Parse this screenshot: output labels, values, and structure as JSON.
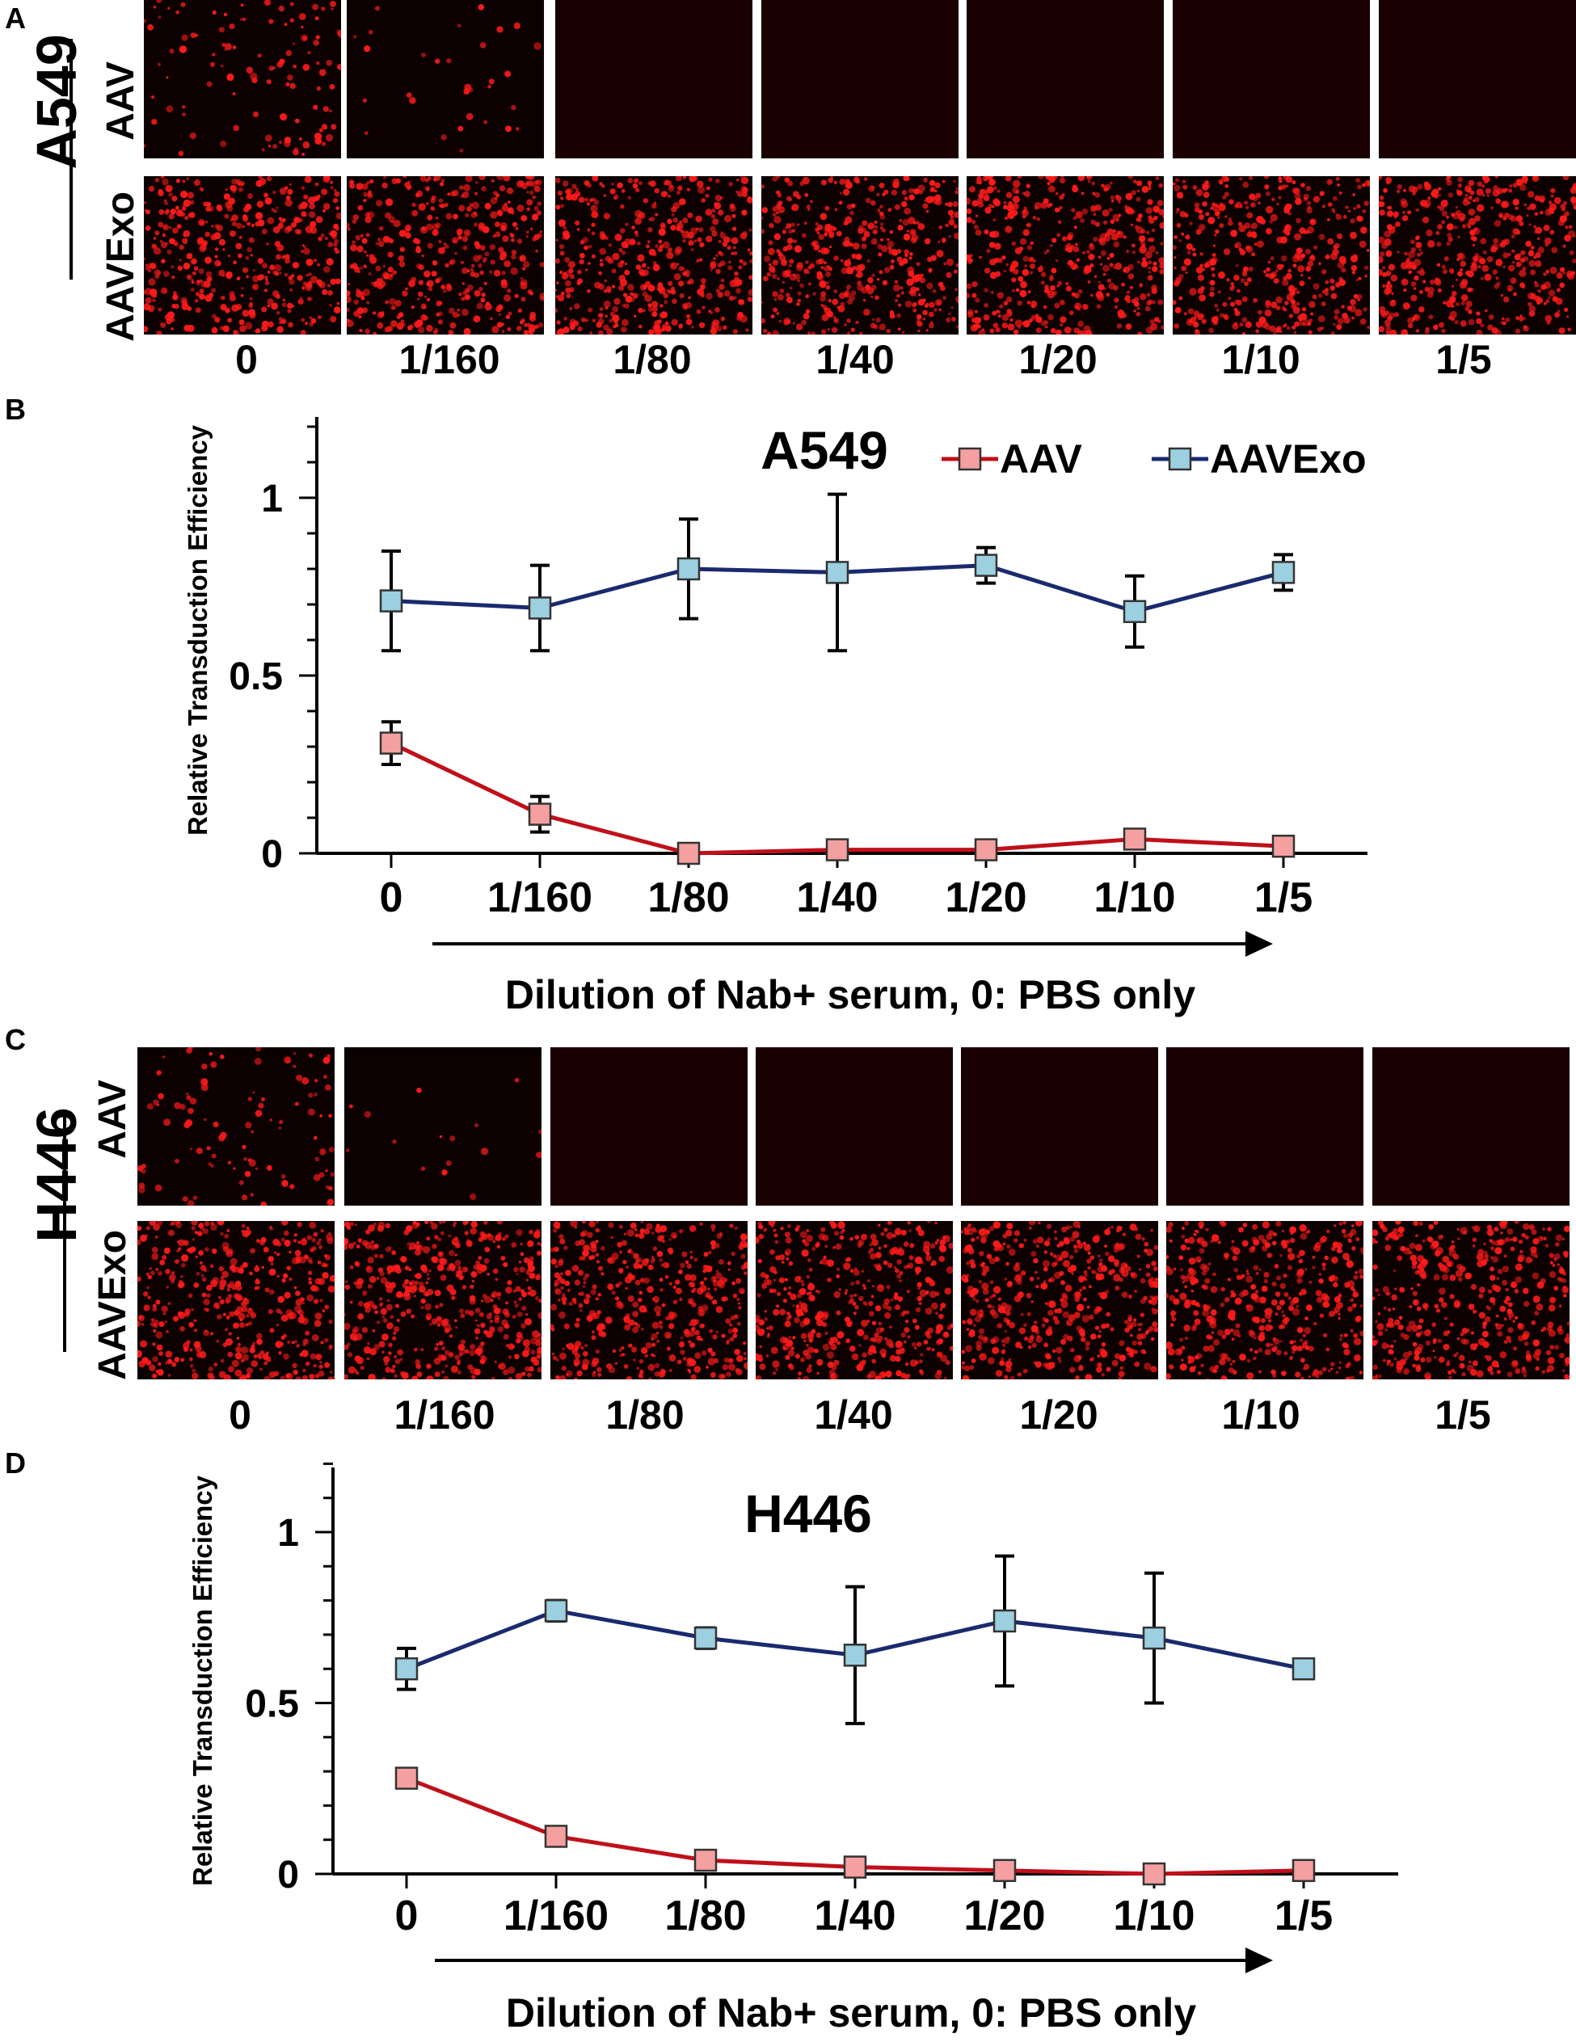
{
  "panels": {
    "a": {
      "letter": "A",
      "cell_line": "A549",
      "row_top": "AAV",
      "row_bottom": "AAVExo"
    },
    "b": {
      "letter": "B"
    },
    "c": {
      "letter": "C",
      "cell_line": "H446",
      "row_top": "AAV",
      "row_bottom": "AAVExo"
    },
    "d": {
      "letter": "D"
    }
  },
  "dilutions": [
    "0",
    "1/160",
    "1/80",
    "1/40",
    "1/20",
    "1/10",
    "1/5"
  ],
  "image_intensity": {
    "a_aav": [
      0.22,
      0.06,
      0.0,
      0.0,
      0.0,
      0.0,
      0.0
    ],
    "a_aavexo": [
      0.8,
      0.8,
      0.85,
      0.85,
      0.85,
      0.8,
      0.85
    ],
    "c_aav": [
      0.2,
      0.03,
      0.0,
      0.0,
      0.0,
      0.0,
      0.0
    ],
    "c_aavexo": [
      0.8,
      0.85,
      0.85,
      0.85,
      0.85,
      0.8,
      0.8
    ]
  },
  "colors": {
    "aav_line": "#c0101a",
    "aav_marker": "#f4a0a0",
    "aavexo_line": "#1a2a6e",
    "aavexo_marker": "#9ccfe0",
    "fluorescence": "#ff1a1a",
    "tile_bg": "#0c0000"
  },
  "chart_data": [
    {
      "type": "line",
      "title": "A549",
      "xlabel": "Dilution of Nab+ serum, 0: PBS only",
      "ylabel": "Relative Transduction Efficiency",
      "categories": [
        "0",
        "1/160",
        "1/80",
        "1/40",
        "1/20",
        "1/10",
        "1/5"
      ],
      "yticks": [
        "0",
        "0.5",
        "1"
      ],
      "ylim": [
        0,
        1.25
      ],
      "legend": "top-right",
      "series": [
        {
          "name": "AAV",
          "values": [
            0.31,
            0.11,
            0.0,
            0.01,
            0.01,
            0.04,
            0.02
          ],
          "errors": [
            0.06,
            0.05,
            0.01,
            0.01,
            0.01,
            0.01,
            0.01
          ]
        },
        {
          "name": "AAVExo",
          "values": [
            0.71,
            0.69,
            0.8,
            0.79,
            0.81,
            0.68,
            0.79
          ],
          "errors": [
            0.14,
            0.12,
            0.14,
            0.22,
            0.05,
            0.1,
            0.05
          ]
        }
      ]
    },
    {
      "type": "line",
      "title": "H446",
      "xlabel": "Dilution of Nab+ serum, 0: PBS only",
      "ylabel": "Relative Transduction Efficiency",
      "categories": [
        "0",
        "1/160",
        "1/80",
        "1/40",
        "1/20",
        "1/10",
        "1/5"
      ],
      "yticks": [
        "0",
        "0.5",
        "1"
      ],
      "ylim": [
        0,
        1.2
      ],
      "series": [
        {
          "name": "AAV",
          "values": [
            0.28,
            0.11,
            0.04,
            0.02,
            0.01,
            0.0,
            0.01
          ],
          "errors": [
            0.02,
            0.01,
            0.01,
            0.01,
            0.01,
            0.01,
            0.01
          ]
        },
        {
          "name": "AAVExo",
          "values": [
            0.6,
            0.77,
            0.69,
            0.64,
            0.74,
            0.69,
            0.6
          ],
          "errors": [
            0.06,
            0.03,
            0.03,
            0.2,
            0.19,
            0.19,
            0.01
          ]
        }
      ]
    }
  ]
}
